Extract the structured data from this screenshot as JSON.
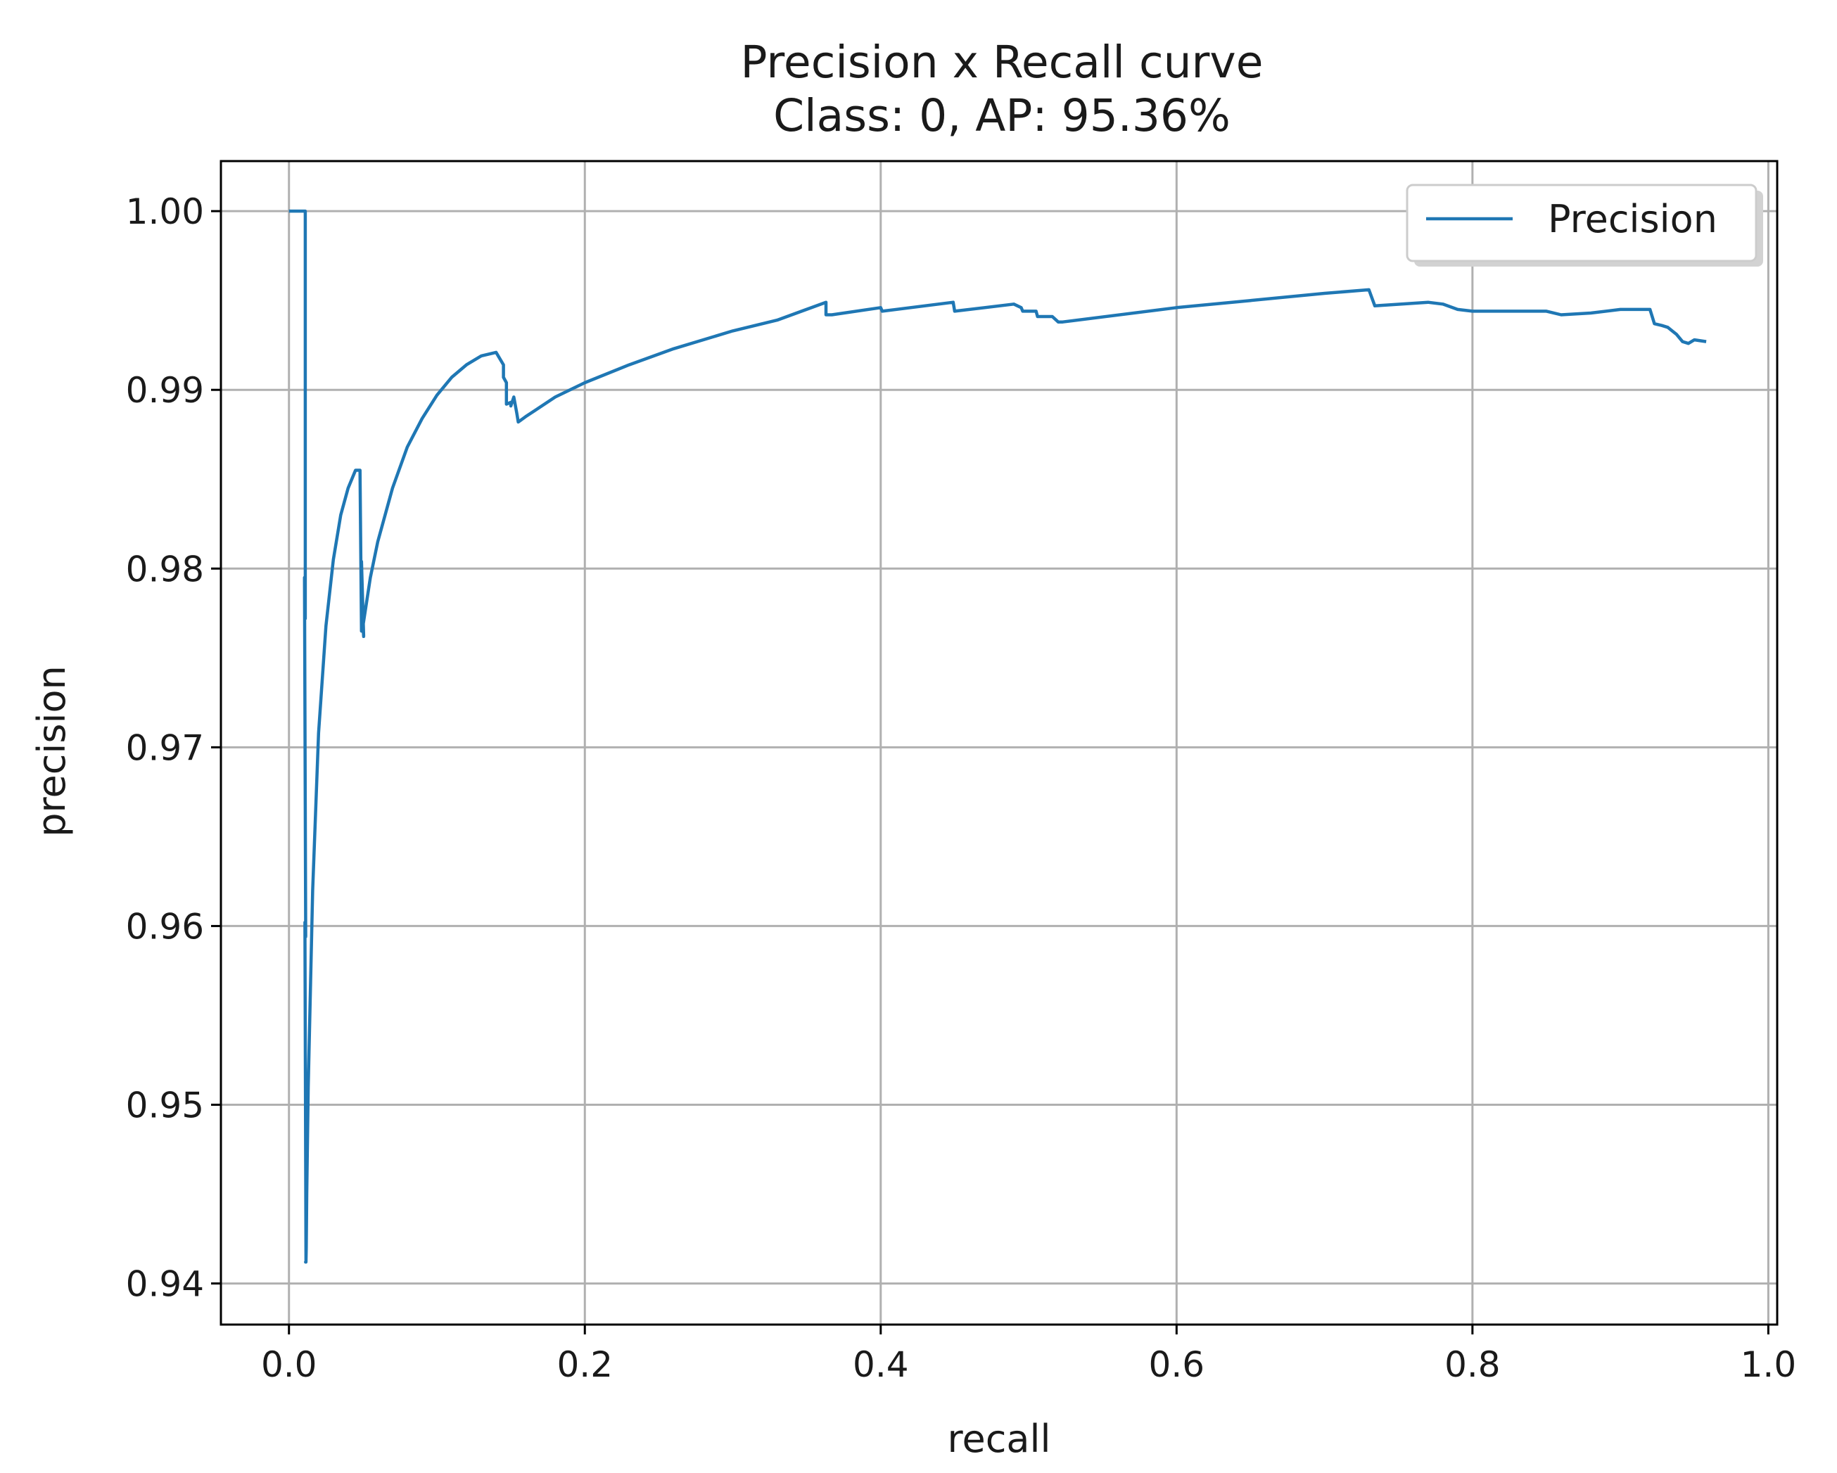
{
  "chart_data": {
    "type": "line",
    "title": "Precision x Recall curve",
    "subtitle": "Class: 0, AP: 95.36%",
    "xlabel": "recall",
    "ylabel": "precision",
    "xlim": [
      -0.046,
      1.006
    ],
    "ylim": [
      0.9377,
      1.0028
    ],
    "grid": true,
    "legend_position": "top-right",
    "x_ticks": [
      {
        "value": 0.0,
        "label": "0.0"
      },
      {
        "value": 0.2,
        "label": "0.2"
      },
      {
        "value": 0.4,
        "label": "0.4"
      },
      {
        "value": 0.6,
        "label": "0.6"
      },
      {
        "value": 0.8,
        "label": "0.8"
      },
      {
        "value": 1.0,
        "label": "1.0"
      }
    ],
    "y_ticks": [
      {
        "value": 0.94,
        "label": "0.94"
      },
      {
        "value": 0.95,
        "label": "0.95"
      },
      {
        "value": 0.96,
        "label": "0.96"
      },
      {
        "value": 0.97,
        "label": "0.97"
      },
      {
        "value": 0.98,
        "label": "0.98"
      },
      {
        "value": 0.99,
        "label": "0.99"
      },
      {
        "value": 1.0,
        "label": "1.00"
      }
    ],
    "series": [
      {
        "name": "Precision",
        "color": "#1f77b4",
        "x": [
          0.0,
          0.011,
          0.011,
          0.0105,
          0.0113,
          0.0108,
          0.0115,
          0.0112,
          0.0115,
          0.0117,
          0.012,
          0.013,
          0.016,
          0.02,
          0.025,
          0.03,
          0.035,
          0.04,
          0.045,
          0.048,
          0.049,
          0.049,
          0.0505,
          0.0505,
          0.05,
          0.055,
          0.06,
          0.07,
          0.08,
          0.09,
          0.1,
          0.11,
          0.12,
          0.13,
          0.14,
          0.145,
          0.145,
          0.147,
          0.147,
          0.15,
          0.15,
          0.152,
          0.154,
          0.155,
          0.16,
          0.18,
          0.2,
          0.23,
          0.26,
          0.3,
          0.33,
          0.363,
          0.363,
          0.367,
          0.4,
          0.401,
          0.449,
          0.45,
          0.49,
          0.495,
          0.496,
          0.505,
          0.506,
          0.516,
          0.52,
          0.523,
          0.6,
          0.65,
          0.7,
          0.73,
          0.734,
          0.77,
          0.78,
          0.79,
          0.8,
          0.85,
          0.86,
          0.88,
          0.9,
          0.92,
          0.923,
          0.928,
          0.932,
          0.935,
          0.938,
          0.942,
          0.946,
          0.95,
          0.958
        ],
        "y": [
          1.0,
          1.0,
          0.9772,
          0.9795,
          0.9594,
          0.9602,
          0.9412,
          0.9412,
          0.9412,
          0.942,
          0.945,
          0.951,
          0.962,
          0.9708,
          0.9768,
          0.9805,
          0.983,
          0.9845,
          0.9855,
          0.9855,
          0.9765,
          0.9804,
          0.9762,
          0.9762,
          0.9768,
          0.9795,
          0.9815,
          0.9845,
          0.9868,
          0.9884,
          0.9897,
          0.9907,
          0.9914,
          0.9919,
          0.9921,
          0.9914,
          0.9907,
          0.9904,
          0.9892,
          0.9893,
          0.9891,
          0.9896,
          0.9887,
          0.9882,
          0.9885,
          0.9896,
          0.9904,
          0.9914,
          0.9923,
          0.9933,
          0.9939,
          0.9949,
          0.9942,
          0.9942,
          0.9946,
          0.9944,
          0.9949,
          0.9944,
          0.9948,
          0.9946,
          0.9944,
          0.9944,
          0.9941,
          0.9941,
          0.9938,
          0.9938,
          0.9946,
          0.995,
          0.9954,
          0.9956,
          0.9947,
          0.9949,
          0.9948,
          0.9945,
          0.9944,
          0.9944,
          0.9942,
          0.9943,
          0.9945,
          0.9945,
          0.9937,
          0.9936,
          0.9935,
          0.9933,
          0.9931,
          0.9927,
          0.9926,
          0.9928,
          0.9927
        ]
      }
    ]
  }
}
